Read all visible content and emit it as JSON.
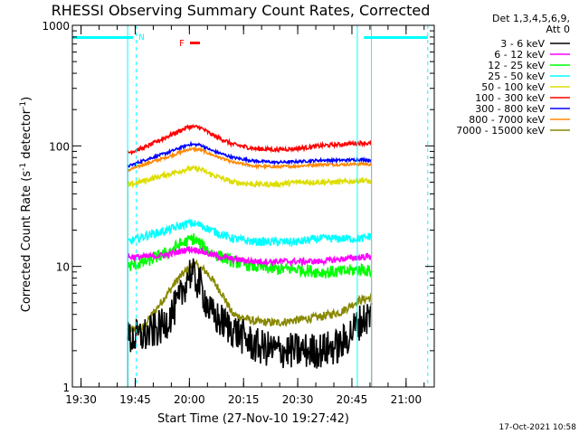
{
  "chart_data": {
    "type": "line",
    "title": "RHESSI Observing Summary Count Rates, Corrected",
    "xlabel": "Start Time (27-Nov-10 19:27:42)",
    "ylabel_main": "Corrected Count Rate (s",
    "ylabel_sup1": "-1",
    "ylabel_mid": " detector",
    "ylabel_sup2": "-1",
    "ylabel_end": ")",
    "yscale": "log",
    "ylim": [
      1,
      1000
    ],
    "xlim_min": [
      19.46,
      21.13
    ],
    "x_ticks": [
      {
        "label": "19:30",
        "t": 19.5
      },
      {
        "label": "19:45",
        "t": 19.75
      },
      {
        "label": "20:00",
        "t": 20.0
      },
      {
        "label": "20:15",
        "t": 20.25
      },
      {
        "label": "20:30",
        "t": 20.5
      },
      {
        "label": "20:45",
        "t": 20.75
      },
      {
        "label": "21:00",
        "t": 21.0
      }
    ],
    "y_ticks": [
      {
        "label": "1000",
        "v": 1000
      },
      {
        "label": "100",
        "v": 100
      },
      {
        "label": "10",
        "v": 10
      },
      {
        "label": "1",
        "v": 1
      }
    ],
    "legend_header": [
      "Det 1,3,4,5,6,9,",
      "Att 0"
    ],
    "data_start": 19.715,
    "data_end": 20.84,
    "series": [
      {
        "name": "3 - 6 keV",
        "color": "#000000",
        "times": [
          19.72,
          19.8,
          19.88,
          19.95,
          20.0,
          20.05,
          20.1,
          20.2,
          20.3,
          20.4,
          20.5,
          20.6,
          20.7,
          20.78,
          20.84
        ],
        "values": [
          2.5,
          2.7,
          3.2,
          5.0,
          9.0,
          7.0,
          4.0,
          3.0,
          2.2,
          2.0,
          2.0,
          2.0,
          2.2,
          3.4,
          4.0
        ],
        "noise": 0.35
      },
      {
        "name": "6 - 12 keV",
        "color": "#ff00ff",
        "times": [
          19.72,
          19.8,
          19.9,
          20.0,
          20.05,
          20.1,
          20.2,
          20.3,
          20.4,
          20.5,
          20.6,
          20.7,
          20.8,
          20.84
        ],
        "values": [
          12,
          12,
          12.5,
          14,
          13.5,
          12.5,
          11.5,
          11,
          11,
          11,
          11,
          11.5,
          12,
          12
        ],
        "noise": 0.06
      },
      {
        "name": "12 - 25 keV",
        "color": "#00ff00",
        "times": [
          19.72,
          19.8,
          19.9,
          19.95,
          20.02,
          20.1,
          20.2,
          20.3,
          20.4,
          20.5,
          20.6,
          20.7,
          20.8,
          20.84
        ],
        "values": [
          10,
          11,
          13,
          15,
          17,
          13,
          11,
          10,
          9.5,
          9.5,
          9,
          9,
          9.5,
          9
        ],
        "noise": 0.12
      },
      {
        "name": "25 - 50 keV",
        "color": "#00ffff",
        "times": [
          19.72,
          19.8,
          19.9,
          20.0,
          20.05,
          20.1,
          20.2,
          20.3,
          20.4,
          20.5,
          20.6,
          20.7,
          20.8,
          20.84
        ],
        "values": [
          16,
          18,
          20,
          23,
          22,
          20,
          17,
          16,
          16,
          16,
          17,
          17,
          17,
          18
        ],
        "noise": 0.08
      },
      {
        "name": "50 - 100 keV",
        "color": "#dddd00",
        "times": [
          19.72,
          19.8,
          19.9,
          20.0,
          20.05,
          20.1,
          20.2,
          20.3,
          20.4,
          20.5,
          20.6,
          20.7,
          20.8,
          20.84
        ],
        "values": [
          47,
          52,
          58,
          65,
          64,
          58,
          50,
          48,
          48,
          50,
          50,
          50,
          52,
          50
        ],
        "noise": 0.05
      },
      {
        "name": "100 - 300 keV",
        "color": "#ff0000",
        "times": [
          19.72,
          19.8,
          19.9,
          20.0,
          20.05,
          20.1,
          20.2,
          20.3,
          20.4,
          20.5,
          20.6,
          20.7,
          20.8,
          20.84
        ],
        "values": [
          88,
          98,
          120,
          145,
          142,
          125,
          103,
          95,
          93,
          95,
          100,
          103,
          106,
          104
        ],
        "noise": 0.04
      },
      {
        "name": "300 - 800 keV",
        "color": "#0000ff",
        "times": [
          19.72,
          19.8,
          19.9,
          20.0,
          20.05,
          20.1,
          20.2,
          20.3,
          20.4,
          20.5,
          20.6,
          20.7,
          20.8,
          20.84
        ],
        "values": [
          68,
          77,
          88,
          103,
          102,
          92,
          80,
          75,
          73,
          74,
          76,
          76,
          77,
          76
        ],
        "noise": 0.025
      },
      {
        "name": "800 - 7000 keV",
        "color": "#ff8800",
        "times": [
          19.72,
          19.8,
          19.9,
          20.0,
          20.05,
          20.1,
          20.2,
          20.3,
          20.4,
          20.5,
          20.6,
          20.7,
          20.8,
          20.84
        ],
        "values": [
          63,
          71,
          81,
          94,
          93,
          85,
          73,
          68,
          67,
          68,
          70,
          70,
          71,
          70
        ],
        "noise": 0.025
      },
      {
        "name": "7000 - 15000 keV",
        "color": "#888800",
        "times": [
          19.72,
          19.78,
          19.85,
          19.9,
          19.95,
          20.02,
          20.08,
          20.15,
          20.2,
          20.3,
          20.4,
          20.5,
          20.6,
          20.7,
          20.78,
          20.84
        ],
        "values": [
          3.0,
          3.0,
          4.5,
          6.0,
          8.0,
          10.5,
          9.0,
          6.0,
          4.0,
          3.5,
          3.4,
          3.6,
          3.8,
          4.2,
          5.2,
          5.5
        ],
        "noise": 0.08
      }
    ],
    "attenuator_bars": [
      {
        "start": 19.46,
        "end": 19.74,
        "label": "N"
      },
      {
        "start": 20.805,
        "end": 21.1,
        "label": ""
      }
    ],
    "flare_flag": {
      "label": "F",
      "start": 19.99,
      "end": 20.01
    },
    "vlines_solid": [
      19.46,
      19.715,
      20.775,
      20.84
    ],
    "vlines_dashed": [
      19.755,
      21.1
    ]
  },
  "footer_date": "17-Oct-2021 10:58"
}
